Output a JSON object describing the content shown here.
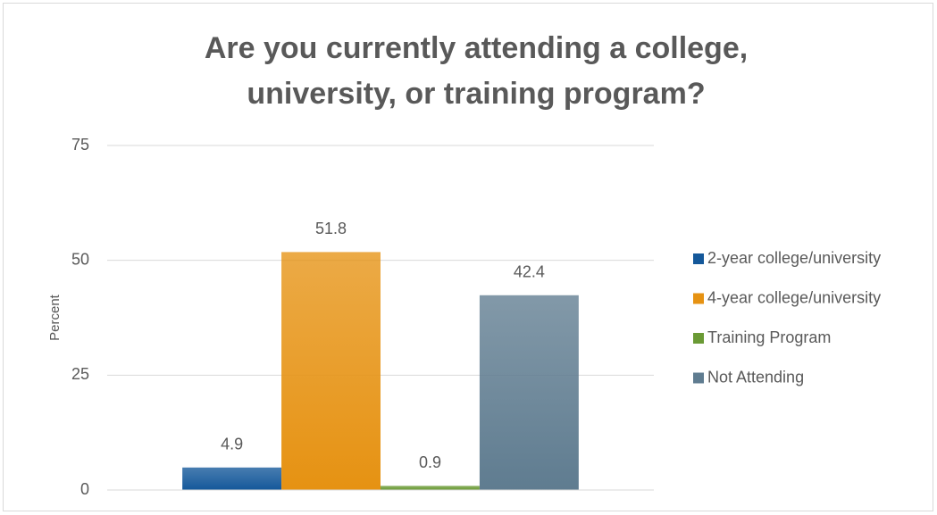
{
  "chart_data": {
    "type": "bar",
    "title": [
      "Are you currently attending a college,",
      "university, or training program?"
    ],
    "y_label": "Percent",
    "categories": [
      null
    ],
    "series": [
      {
        "name": "2-year college/university",
        "color": "#14589a",
        "values": [
          4.9
        ]
      },
      {
        "name": "4-year college/university",
        "color": "#e69212",
        "values": [
          51.8
        ]
      },
      {
        "name": "Training Program",
        "color": "#6a9a35",
        "values": [
          0.9
        ]
      },
      {
        "name": "Not Attending",
        "color": "#5f7c90",
        "values": [
          42.4
        ]
      }
    ],
    "ylim": [
      0,
      75
    ],
    "yticks": [
      0,
      25,
      50,
      75
    ],
    "grid": true,
    "legend": "right"
  }
}
